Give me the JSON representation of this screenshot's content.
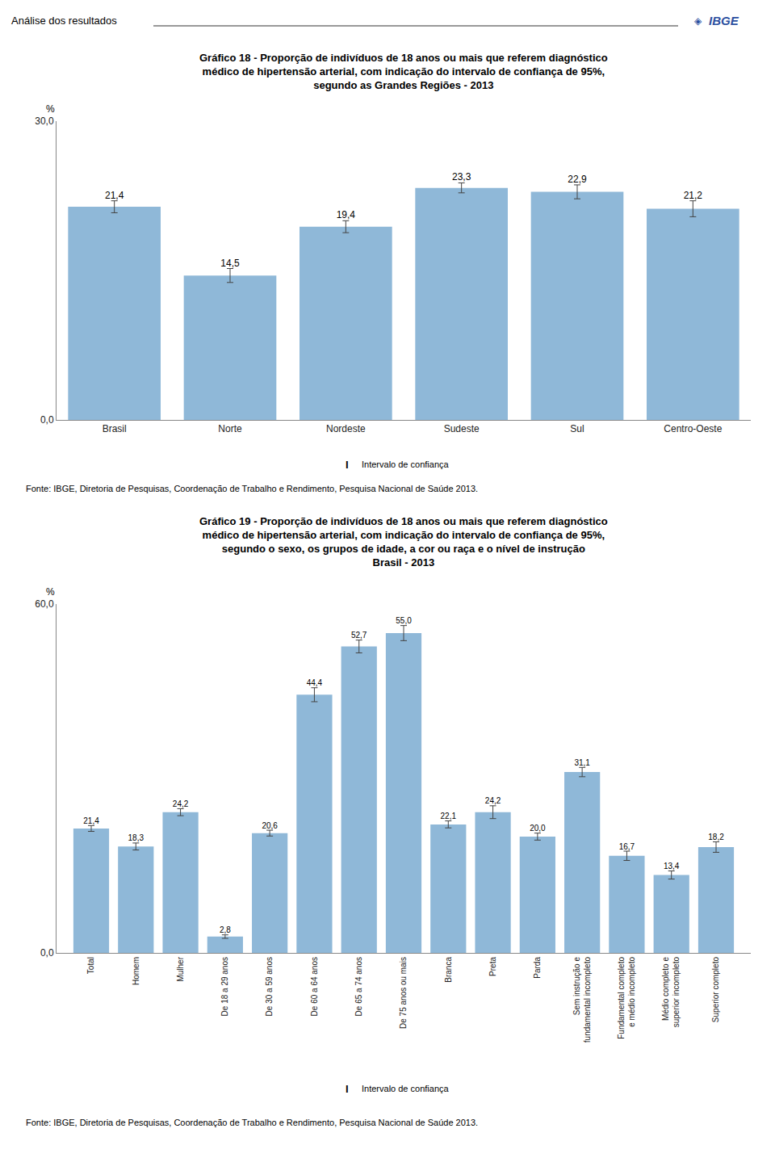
{
  "chart_data": [
    {
      "type": "bar",
      "title": "Gráfico 18 - Proporção de indivíduos de 18 anos ou mais que referem diagnóstico\nmédico de hipertensão arterial, com indicação do intervalo de confiança de 95%,\nsegundo as Grandes Regiões - 2013",
      "annotations": [
        "Análise dos resultados",
        "◈",
        "IBGE",
        "I",
        "Intervalo de confiança",
        "Fonte: IBGE, Diretoria de Pesquisas, Coordenação de Trabalho e Rendimento, Pesquisa Nacional de Saúde 2013."
      ],
      "ylabel": "%",
      "categories": [
        "Brasil",
        "Norte",
        "Nordeste",
        "Sudeste",
        "Sul",
        "Centro-Oeste"
      ],
      "values": [
        21.4,
        14.5,
        19.4,
        23.3,
        22.9,
        21.2
      ],
      "value_labels": [
        "21,4",
        "14,5",
        "19,4",
        "23,3",
        "22,9",
        "21,2"
      ],
      "errors": [
        0.6,
        0.7,
        0.6,
        0.5,
        0.7,
        0.8
      ],
      "color": "#8fb8d8",
      "ylim": [
        0,
        30
      ],
      "yticks": [
        {
          "value": 0,
          "label": "0,0"
        },
        {
          "value": 30,
          "label": "30,0"
        }
      ],
      "grid": false,
      "data_labels": true
    },
    {
      "type": "bar",
      "title": "Gráfico 19 - Proporção de indivíduos de 18 anos ou mais que referem diagnóstico\nmédico de hipertensão arterial, com indicação do intervalo de confiança de 95%,\nsegundo o sexo, os grupos de idade, a cor ou raça e o nível de instrução\nBrasil - 2013",
      "annotations": [
        "I",
        "Intervalo de confiança",
        "Fonte: IBGE, Diretoria de Pesquisas, Coordenação de Trabalho e Rendimento, Pesquisa Nacional de Saúde 2013."
      ],
      "ylabel": "%",
      "categories": [
        "Total",
        "Homem",
        "Mulher",
        "De 18 a 29 anos",
        "De 30 a 59 anos",
        "De 60 a 64 anos",
        "De 65 a 74 anos",
        "De 75 anos ou mais",
        "Branca",
        "Preta",
        "Parda",
        "Sem instrução e\nfundamental incompleto",
        "Fundamental completo\ne médio incompleto",
        "Médio completo e\nsuperior incompleto",
        "Superior completo"
      ],
      "values": [
        21.4,
        18.3,
        24.2,
        2.8,
        20.6,
        44.4,
        52.7,
        55.0,
        22.1,
        24.2,
        20.0,
        31.1,
        16.7,
        13.4,
        18.2
      ],
      "value_labels": [
        "21,4",
        "18,3",
        "24,2",
        "2,8",
        "20,6",
        "44,4",
        "52,7",
        "55,0",
        "22,1",
        "24,2",
        "20,0",
        "31,1",
        "16,7",
        "13,4",
        "18,2"
      ],
      "errors": [
        0.5,
        0.6,
        0.6,
        0.3,
        0.5,
        1.2,
        1.1,
        1.3,
        0.6,
        1.1,
        0.6,
        0.8,
        0.8,
        0.7,
        0.9
      ],
      "color": "#8fb8d8",
      "ylim": [
        0,
        60
      ],
      "yticks": [
        {
          "value": 0,
          "label": "0,0"
        },
        {
          "value": 60,
          "label": "60,0"
        }
      ],
      "grid": false,
      "data_labels": true
    }
  ]
}
